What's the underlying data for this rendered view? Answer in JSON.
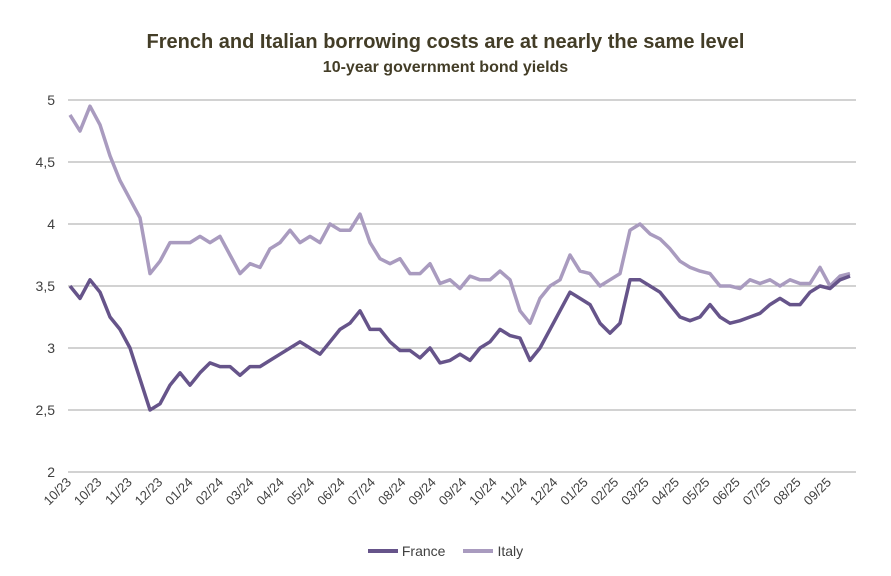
{
  "chart_data": {
    "type": "line",
    "title": "French and Italian borrowing costs are at nearly the same level",
    "subtitle": "10-year government bond yields",
    "ylim": [
      2,
      5
    ],
    "yticks": [
      "2",
      "2,5",
      "3",
      "3,5",
      "4",
      "4,5",
      "5"
    ],
    "ytick_values": [
      2,
      2.5,
      3,
      3.5,
      4,
      4.5,
      5
    ],
    "xtick_labels": [
      "10/23",
      "10/23",
      "11/23",
      "12/23",
      "01/24",
      "02/24",
      "03/24",
      "04/24",
      "05/24",
      "06/24",
      "07/24",
      "08/24",
      "09/24",
      "09/24",
      "10/24",
      "11/24",
      "12/24",
      "01/25",
      "02/25",
      "03/25",
      "04/25",
      "05/25",
      "06/25",
      "07/25",
      "08/25",
      "09/25"
    ],
    "x_range": [
      "10/23",
      "10/25"
    ],
    "grid": "horizontal",
    "legend": "bottom",
    "series": [
      {
        "name": "France",
        "color": "#66548a",
        "values": [
          3.5,
          3.4,
          3.55,
          3.45,
          3.25,
          3.15,
          3.0,
          2.75,
          2.5,
          2.55,
          2.7,
          2.8,
          2.7,
          2.8,
          2.88,
          2.85,
          2.85,
          2.78,
          2.85,
          2.85,
          2.9,
          2.95,
          3.0,
          3.05,
          3.0,
          2.95,
          3.05,
          3.15,
          3.2,
          3.3,
          3.15,
          3.15,
          3.05,
          2.98,
          2.98,
          2.92,
          3.0,
          2.88,
          2.9,
          2.95,
          2.9,
          3.0,
          3.05,
          3.15,
          3.1,
          3.08,
          2.9,
          3.0,
          3.15,
          3.3,
          3.45,
          3.4,
          3.35,
          3.2,
          3.12,
          3.2,
          3.55,
          3.55,
          3.5,
          3.45,
          3.35,
          3.25,
          3.22,
          3.25,
          3.35,
          3.25,
          3.2,
          3.22,
          3.25,
          3.28,
          3.35,
          3.4,
          3.35,
          3.35,
          3.45,
          3.5,
          3.48,
          3.55,
          3.58
        ]
      },
      {
        "name": "Italy",
        "color": "#a99bbf",
        "values": [
          4.88,
          4.75,
          4.95,
          4.8,
          4.55,
          4.35,
          4.2,
          4.05,
          3.6,
          3.7,
          3.85,
          3.85,
          3.85,
          3.9,
          3.85,
          3.9,
          3.75,
          3.6,
          3.68,
          3.65,
          3.8,
          3.85,
          3.95,
          3.85,
          3.9,
          3.85,
          4.0,
          3.95,
          3.95,
          4.08,
          3.85,
          3.72,
          3.68,
          3.72,
          3.6,
          3.6,
          3.68,
          3.52,
          3.55,
          3.48,
          3.58,
          3.55,
          3.55,
          3.62,
          3.55,
          3.3,
          3.2,
          3.4,
          3.5,
          3.55,
          3.75,
          3.62,
          3.6,
          3.5,
          3.55,
          3.6,
          3.95,
          4.0,
          3.92,
          3.88,
          3.8,
          3.7,
          3.65,
          3.62,
          3.6,
          3.5,
          3.5,
          3.48,
          3.55,
          3.52,
          3.55,
          3.5,
          3.55,
          3.52,
          3.52,
          3.65,
          3.5,
          3.58,
          3.6
        ]
      }
    ]
  }
}
